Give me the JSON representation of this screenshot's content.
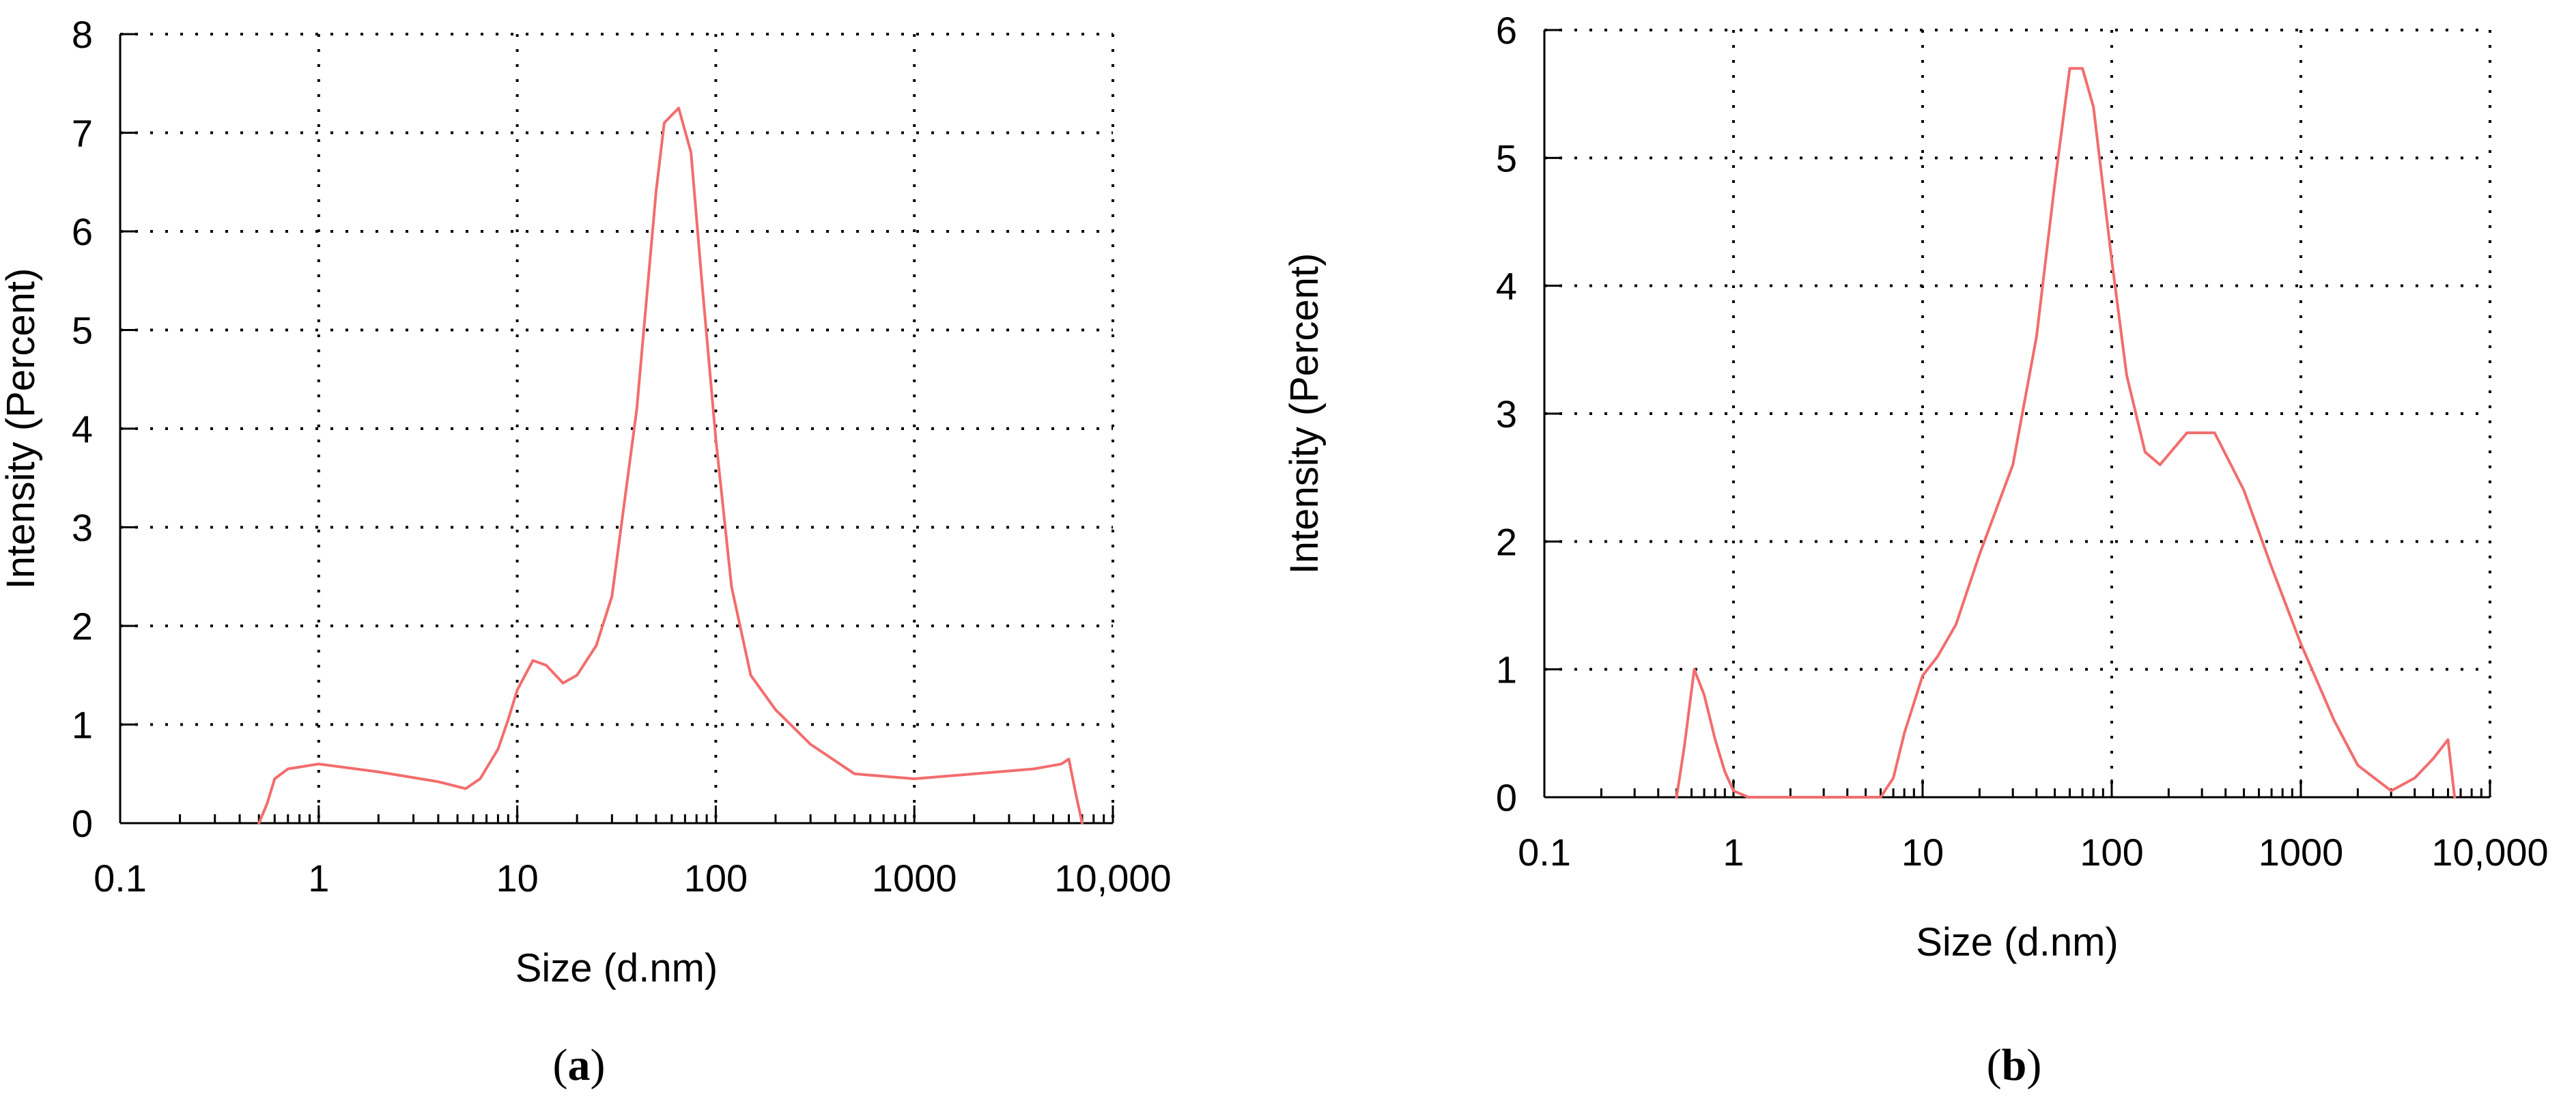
{
  "colors": {
    "line": "#f26d6d",
    "axis": "#000000",
    "grid": "#000000",
    "background": "#ffffff"
  },
  "chart_data": [
    {
      "type": "line",
      "panel": "a",
      "caption": "(a)",
      "xlabel": "Size (d.nm)",
      "ylabel": "Intensity (Percent)",
      "xscale": "log",
      "xlim": [
        0.1,
        10000
      ],
      "ylim": [
        0,
        8
      ],
      "xtick_labels": [
        "0.1",
        "1",
        "10",
        "100",
        "1000",
        "10,000"
      ],
      "ytick_labels": [
        "0",
        "1",
        "2",
        "3",
        "4",
        "5",
        "6",
        "7",
        "8"
      ],
      "grid": true,
      "series": [
        {
          "x": [
            0.5,
            0.55,
            0.6,
            0.7,
            1,
            2,
            4,
            5.5,
            6.5,
            8,
            9,
            10,
            12,
            14,
            17,
            20,
            25,
            30,
            40,
            50,
            55,
            65,
            75,
            85,
            100,
            120,
            150,
            200,
            300,
            500,
            1000,
            2000,
            4000,
            5500,
            6000,
            6500,
            7000
          ],
          "y": [
            0,
            0.2,
            0.45,
            0.55,
            0.6,
            0.52,
            0.42,
            0.35,
            0.45,
            0.75,
            1.05,
            1.35,
            1.65,
            1.6,
            1.42,
            1.5,
            1.8,
            2.3,
            4.2,
            6.4,
            7.1,
            7.25,
            6.8,
            5.5,
            3.9,
            2.4,
            1.5,
            1.15,
            0.8,
            0.5,
            0.45,
            0.5,
            0.55,
            0.6,
            0.65,
            0.3,
            0
          ]
        }
      ]
    },
    {
      "type": "line",
      "panel": "b",
      "caption": "(b)",
      "xlabel": "Size (d.nm)",
      "ylabel": "Intensity (Percent)",
      "xscale": "log",
      "xlim": [
        0.1,
        10000
      ],
      "ylim": [
        0,
        6
      ],
      "xtick_labels": [
        "0.1",
        "1",
        "10",
        "100",
        "1000",
        "10,000"
      ],
      "ytick_labels": [
        "0",
        "1",
        "2",
        "3",
        "4",
        "5",
        "6"
      ],
      "grid": true,
      "series": [
        {
          "x": [
            0.5,
            0.55,
            0.62,
            0.7,
            0.8,
            0.9,
            1.0,
            1.2,
            6,
            7,
            8,
            10,
            12,
            15,
            20,
            30,
            40,
            50,
            60,
            70,
            80,
            100,
            120,
            150,
            180,
            250,
            350,
            500,
            700,
            1000,
            1500,
            2000,
            3000,
            4000,
            5000,
            6000,
            6500
          ],
          "y": [
            0,
            0.4,
            1.0,
            0.8,
            0.45,
            0.2,
            0.05,
            0,
            0,
            0.15,
            0.5,
            0.95,
            1.1,
            1.35,
            1.9,
            2.6,
            3.6,
            4.8,
            5.7,
            5.7,
            5.4,
            4.2,
            3.3,
            2.7,
            2.6,
            2.85,
            2.85,
            2.4,
            1.8,
            1.2,
            0.6,
            0.25,
            0.05,
            0.15,
            0.3,
            0.45,
            0
          ]
        }
      ]
    }
  ]
}
